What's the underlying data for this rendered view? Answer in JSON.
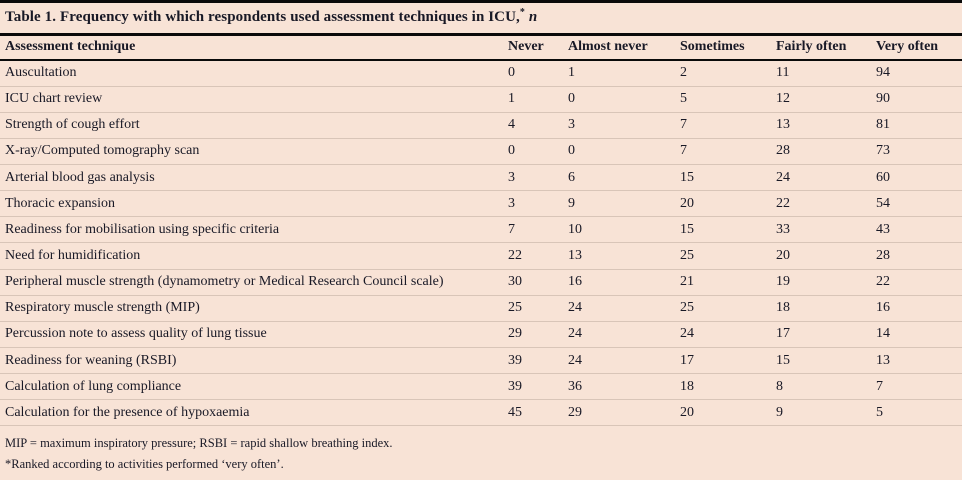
{
  "colors": {
    "background": "#f8e3d6",
    "text": "#191926",
    "rule": "#0a0a0a",
    "row_divider": "#d9c5b8"
  },
  "table": {
    "title": {
      "text": "Table 1. Frequency with which respondents used assessment techniques in ICU,",
      "marker": "*",
      "suffix": "n"
    },
    "columns": [
      "Assessment technique",
      "Never",
      "Almost never",
      "Sometimes",
      "Fairly often",
      "Very often"
    ],
    "rows": [
      {
        "label": "Auscultation",
        "values": [
          0,
          1,
          2,
          11,
          94
        ]
      },
      {
        "label": "ICU chart review",
        "values": [
          1,
          0,
          5,
          12,
          90
        ]
      },
      {
        "label": "Strength of cough effort",
        "values": [
          4,
          3,
          7,
          13,
          81
        ]
      },
      {
        "label": "X-ray/Computed tomography scan",
        "values": [
          0,
          0,
          7,
          28,
          73
        ]
      },
      {
        "label": "Arterial blood gas analysis",
        "values": [
          3,
          6,
          15,
          24,
          60
        ]
      },
      {
        "label": "Thoracic expansion",
        "values": [
          3,
          9,
          20,
          22,
          54
        ]
      },
      {
        "label": "Readiness for mobilisation using specific criteria",
        "values": [
          7,
          10,
          15,
          33,
          43
        ]
      },
      {
        "label": "Need for humidification",
        "values": [
          22,
          13,
          25,
          20,
          28
        ]
      },
      {
        "label": "Peripheral muscle strength (dynamometry or Medical Research Council scale)",
        "values": [
          30,
          16,
          21,
          19,
          22
        ]
      },
      {
        "label": "Respiratory muscle strength (MIP)",
        "values": [
          25,
          24,
          25,
          18,
          16
        ]
      },
      {
        "label": "Percussion note to assess quality of lung tissue",
        "values": [
          29,
          24,
          24,
          17,
          14
        ]
      },
      {
        "label": "Readiness for weaning (RSBI)",
        "values": [
          39,
          24,
          17,
          15,
          13
        ]
      },
      {
        "label": "Calculation of lung compliance",
        "values": [
          39,
          36,
          18,
          8,
          7
        ]
      },
      {
        "label": "Calculation for the presence of hypoxaemia",
        "values": [
          45,
          29,
          20,
          9,
          5
        ]
      }
    ],
    "footnotes": [
      "MIP = maximum inspiratory pressure; RSBI = rapid shallow breathing index.",
      "*Ranked according to activities performed ‘very often’."
    ]
  }
}
